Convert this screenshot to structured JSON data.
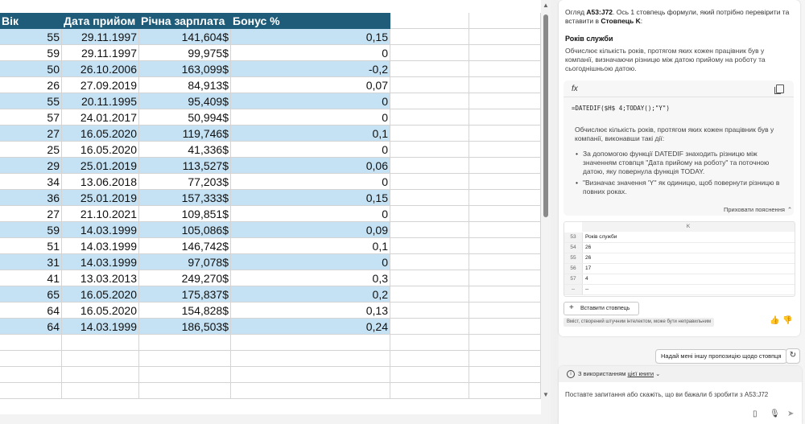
{
  "sheet": {
    "headers": [
      "Вік",
      "Дата прийом",
      "Річна зарплата",
      "Бонус %"
    ],
    "rows": [
      [
        "55",
        "29.11.1997",
        "141,604$",
        "0,15"
      ],
      [
        "59",
        "29.11.1997",
        "99,975$",
        "0"
      ],
      [
        "50",
        "26.10.2006",
        "163,099$",
        "-0,2"
      ],
      [
        "26",
        "27.09.2019",
        "84,913$",
        "0,07"
      ],
      [
        "55",
        "20.11.1995",
        "95,409$",
        "0"
      ],
      [
        "57",
        "24.01.2017",
        "50,994$",
        "0"
      ],
      [
        "27",
        "16.05.2020",
        "119,746$",
        "0,1"
      ],
      [
        "25",
        "16.05.2020",
        "41,336$",
        "0"
      ],
      [
        "29",
        "25.01.2019",
        "113,527$",
        "0,06"
      ],
      [
        "34",
        "13.06.2018",
        "77,203$",
        "0"
      ],
      [
        "36",
        "25.01.2019",
        "157,333$",
        "0,15"
      ],
      [
        "27",
        "21.10.2021",
        "109,851$",
        "0"
      ],
      [
        "59",
        "14.03.1999",
        "105,086$",
        "0,09"
      ],
      [
        "51",
        "14.03.1999",
        "146,742$",
        "0,1"
      ],
      [
        "31",
        "14.03.1999",
        "97,078$",
        "0"
      ],
      [
        "41",
        "13.03.2013",
        "249,270$",
        "0,3"
      ],
      [
        "65",
        "16.05.2020",
        "175,837$",
        "0,2"
      ],
      [
        "64",
        "16.05.2020",
        "154,828$",
        "0,13"
      ],
      [
        "64",
        "14.03.1999",
        "186,503$",
        "0,24"
      ]
    ],
    "colors": {
      "header_bg": "#1f5c7a",
      "band_bg": "#c4e2f4"
    }
  },
  "copilot": {
    "intro_prefix": "Огляд ",
    "intro_range": "A53:J72",
    "intro_mid": ". Ось 1 стовпець формули, який потрібно перевірити та вставити в ",
    "intro_target": "Стовпець K",
    "intro_end": ":",
    "column_name": "Років служби",
    "column_desc": "Обчислює кількість років, протягом яких кожен працівник був у компанії, визначаючи різницю між датою прийому на роботу та сьогоднішньою датою.",
    "formula": "=DATEDIF($H$ 4;TODAY();\"Y\")",
    "formula_desc": "Обчислює кількість років, протягом яких кожен працівник був у компанії, виконавши такі дії:",
    "bullets": [
      "За допомогою функції DATEDIF знаходить різницю між значенням стовпця \"Дата прийому на роботу\" та поточною датою, яку повернула функція TODAY.",
      "\"Визначає значення 'Y'' як одиницю, щоб повернути різницю в повних роках."
    ],
    "hide_label": "Приховати пояснення",
    "preview": {
      "col_letter": "K",
      "rows": [
        {
          "num": "53",
          "val": "Років служби"
        },
        {
          "num": "54",
          "val": "26"
        },
        {
          "num": "55",
          "val": "26"
        },
        {
          "num": "56",
          "val": "17"
        },
        {
          "num": "57",
          "val": "4"
        },
        {
          "num": "--",
          "val": "--"
        }
      ]
    },
    "insert_label": "Вставити стовпець",
    "disclaimer": "Вміст, створений штучним інтелектом, може бути неправильним",
    "suggest_label": "Надай мені іншу пропозицію щодо стовпця",
    "source_prefix": "З використанням ",
    "source_link": "цієї книги",
    "prompt_placeholder": "Поставте запитання або скажіть, що ви бажали б зробити з A53:J72"
  },
  "icons": [
    "fx-icon",
    "copy-icon",
    "chevron-up-icon",
    "plus-icon",
    "thumbs-up-icon",
    "thumbs-down-icon",
    "refresh-icon",
    "info-icon",
    "chevron-down-icon",
    "attach-icon",
    "mic-icon",
    "send-icon"
  ]
}
